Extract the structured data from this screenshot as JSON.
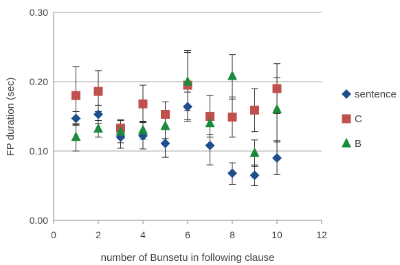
{
  "chart_data": {
    "type": "scatter",
    "xlabel": "number of Bunsetu in following clause",
    "ylabel": "FP duration (sec)",
    "xlim": [
      0,
      12
    ],
    "ylim": [
      0,
      0.3
    ],
    "x_ticks": [
      "0",
      "2",
      "4",
      "6",
      "8",
      "10",
      "12"
    ],
    "y_ticks": [
      "0.00",
      "0.10",
      "0.20",
      "0.30"
    ],
    "grid": "horizontal",
    "legend_position": "right",
    "series": [
      {
        "name": "sentence",
        "color": "#1f4e8c",
        "marker": "diamond",
        "x": [
          1,
          2,
          3,
          4,
          5,
          6,
          7,
          8,
          9,
          10
        ],
        "y": [
          0.147,
          0.153,
          0.12,
          0.122,
          0.111,
          0.164,
          0.108,
          0.068,
          0.065,
          0.09
        ],
        "err_low": [
          0.137,
          0.14,
          0.104,
          0.103,
          0.091,
          0.143,
          0.08,
          0.052,
          0.05,
          0.066
        ],
        "err_high": [
          0.157,
          0.166,
          0.136,
          0.141,
          0.131,
          0.185,
          0.136,
          0.083,
          0.08,
          0.115
        ]
      },
      {
        "name": "C",
        "color": "#c0504d",
        "marker": "square",
        "x": [
          1,
          2,
          3,
          4,
          5,
          6,
          7,
          8,
          9,
          10
        ],
        "y": [
          0.18,
          0.186,
          0.133,
          0.168,
          0.153,
          0.195,
          0.15,
          0.149,
          0.159,
          0.19
        ],
        "err_low": [
          0.138,
          0.157,
          0.12,
          0.142,
          0.135,
          0.145,
          0.12,
          0.12,
          0.128,
          0.154
        ],
        "err_high": [
          0.222,
          0.216,
          0.145,
          0.195,
          0.171,
          0.245,
          0.18,
          0.178,
          0.19,
          0.226
        ]
      },
      {
        "name": "B",
        "color": "#1a8a3c",
        "marker": "triangle",
        "x": [
          1,
          2,
          3,
          4,
          5,
          6,
          7,
          8,
          9,
          10
        ],
        "y": [
          0.12,
          0.132,
          0.128,
          0.13,
          0.136,
          0.2,
          0.14,
          0.208,
          0.097,
          0.16
        ],
        "err_low": [
          0.1,
          0.12,
          0.112,
          0.117,
          0.118,
          0.158,
          0.124,
          0.175,
          0.078,
          0.113
        ],
        "err_high": [
          0.14,
          0.144,
          0.144,
          0.143,
          0.154,
          0.242,
          0.156,
          0.239,
          0.116,
          0.206
        ]
      }
    ]
  }
}
